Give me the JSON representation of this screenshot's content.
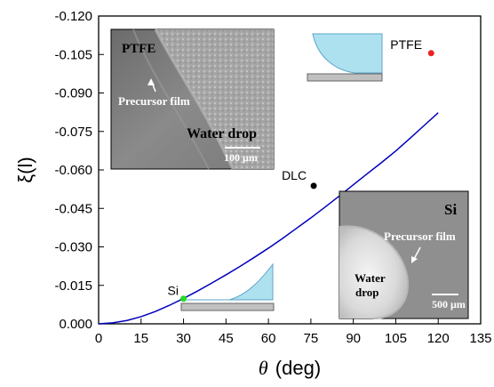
{
  "chart_data": {
    "type": "line",
    "xlabel": "θ (deg)",
    "xlabel_symbol": "θ",
    "xlabel_unit": "(deg)",
    "ylabel": "ξ(l)",
    "xlim": [
      0,
      135
    ],
    "ylim": [
      0,
      -0.12
    ],
    "x_ticks": [
      0,
      15,
      30,
      45,
      60,
      75,
      90,
      105,
      120,
      135
    ],
    "y_ticks": [
      0.0,
      -0.015,
      -0.03,
      -0.045,
      -0.06,
      -0.075,
      -0.09,
      -0.105,
      -0.12
    ],
    "x_tick_labels": [
      "0",
      "15",
      "30",
      "45",
      "60",
      "75",
      "90",
      "105",
      "120",
      "135"
    ],
    "y_tick_labels": [
      "0.000",
      "-0.015",
      "-0.030",
      "-0.045",
      "-0.060",
      "-0.075",
      "-0.090",
      "-0.105",
      "-0.120"
    ],
    "series": [
      {
        "color": "#0000bb",
        "x": [
          0,
          5,
          10,
          15,
          20,
          25,
          30,
          35,
          40,
          45,
          50,
          55,
          60,
          65,
          70,
          75,
          80,
          85,
          90,
          95,
          100,
          105,
          110,
          115,
          120
        ],
        "y": [
          0,
          -0.0004,
          -0.0013,
          -0.0028,
          -0.0048,
          -0.0072,
          -0.0099,
          -0.0128,
          -0.0159,
          -0.0191,
          -0.0224,
          -0.0259,
          -0.0295,
          -0.0333,
          -0.0373,
          -0.0413,
          -0.0455,
          -0.0498,
          -0.0542,
          -0.0586,
          -0.0629,
          -0.0674,
          -0.0723,
          -0.0773,
          -0.0823
        ]
      }
    ],
    "points": [
      {
        "label": "Si",
        "x": 30,
        "y": -0.0098,
        "color": "#22dd22"
      },
      {
        "label": "DLC",
        "x": 76,
        "y": -0.0538,
        "color": "#000000"
      },
      {
        "label": "PTFE",
        "x": 117.5,
        "y": -0.1055,
        "color": "#ee2222"
      }
    ]
  },
  "insets": {
    "ptfe_image": {
      "title": "PTFE",
      "title_color": "#ffff33",
      "label_precursor": "Precursor film",
      "label_drop": "Water drop",
      "label_drop_color": "#bfe6f5",
      "scale": "100 µm"
    },
    "si_image": {
      "title": "Si",
      "title_color": "#1a2f8f",
      "label_precursor": "Precursor film",
      "label_drop_line1": "Water",
      "label_drop_line2": "drop",
      "scale": "500 µm"
    }
  }
}
